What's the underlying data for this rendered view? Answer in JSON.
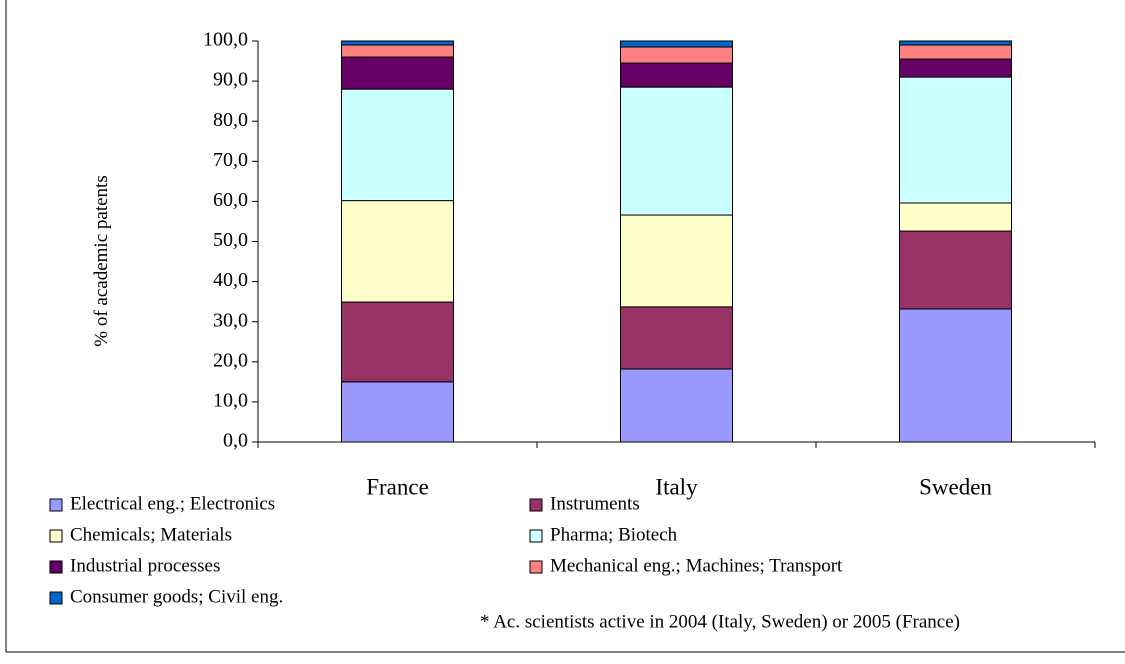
{
  "chart_data": {
    "type": "stacked_bar",
    "y_label": "% of academic patents",
    "note": "* Ac. scientists active in 2004 (Italy, Sweden) or 2005 (France)",
    "categories": [
      "France",
      "Italy",
      "Sweden"
    ],
    "series": [
      {
        "name": "Electrical eng.; Electronics",
        "color": "#9999ff",
        "values": [
          15.0,
          18.2,
          33.2
        ]
      },
      {
        "name": "Instruments",
        "color": "#993366",
        "values": [
          19.9,
          15.5,
          19.4
        ]
      },
      {
        "name": "Chemicals; Materials",
        "color": "#ffffcc",
        "values": [
          25.3,
          22.9,
          7.0
        ]
      },
      {
        "name": "Pharma; Biotech",
        "color": "#ccffff",
        "values": [
          27.8,
          31.9,
          31.4
        ]
      },
      {
        "name": "Industrial processes",
        "color": "#660066",
        "values": [
          8.0,
          6.0,
          4.5
        ]
      },
      {
        "name": "Mechanical eng.; Machines; Transport",
        "color": "#ff8080",
        "values": [
          3.0,
          4.0,
          3.5
        ]
      },
      {
        "name": "Consumer goods; Civil eng.",
        "color": "#0066cc",
        "values": [
          1.0,
          1.5,
          1.0
        ]
      }
    ],
    "ylim": [
      0,
      100
    ],
    "yticks": [
      {
        "value": 0,
        "label": "0,0"
      },
      {
        "value": 10,
        "label": "10,0"
      },
      {
        "value": 20,
        "label": "20,0"
      },
      {
        "value": 30,
        "label": "30,0"
      },
      {
        "value": 40,
        "label": "40,0"
      },
      {
        "value": 50,
        "label": "50,0"
      },
      {
        "value": 60,
        "label": "60,0"
      },
      {
        "value": 70,
        "label": "70,0"
      },
      {
        "value": 80,
        "label": "80,0"
      },
      {
        "value": 90,
        "label": "90,0"
      },
      {
        "value": 100,
        "label": "100,0"
      }
    ],
    "grid": false
  }
}
